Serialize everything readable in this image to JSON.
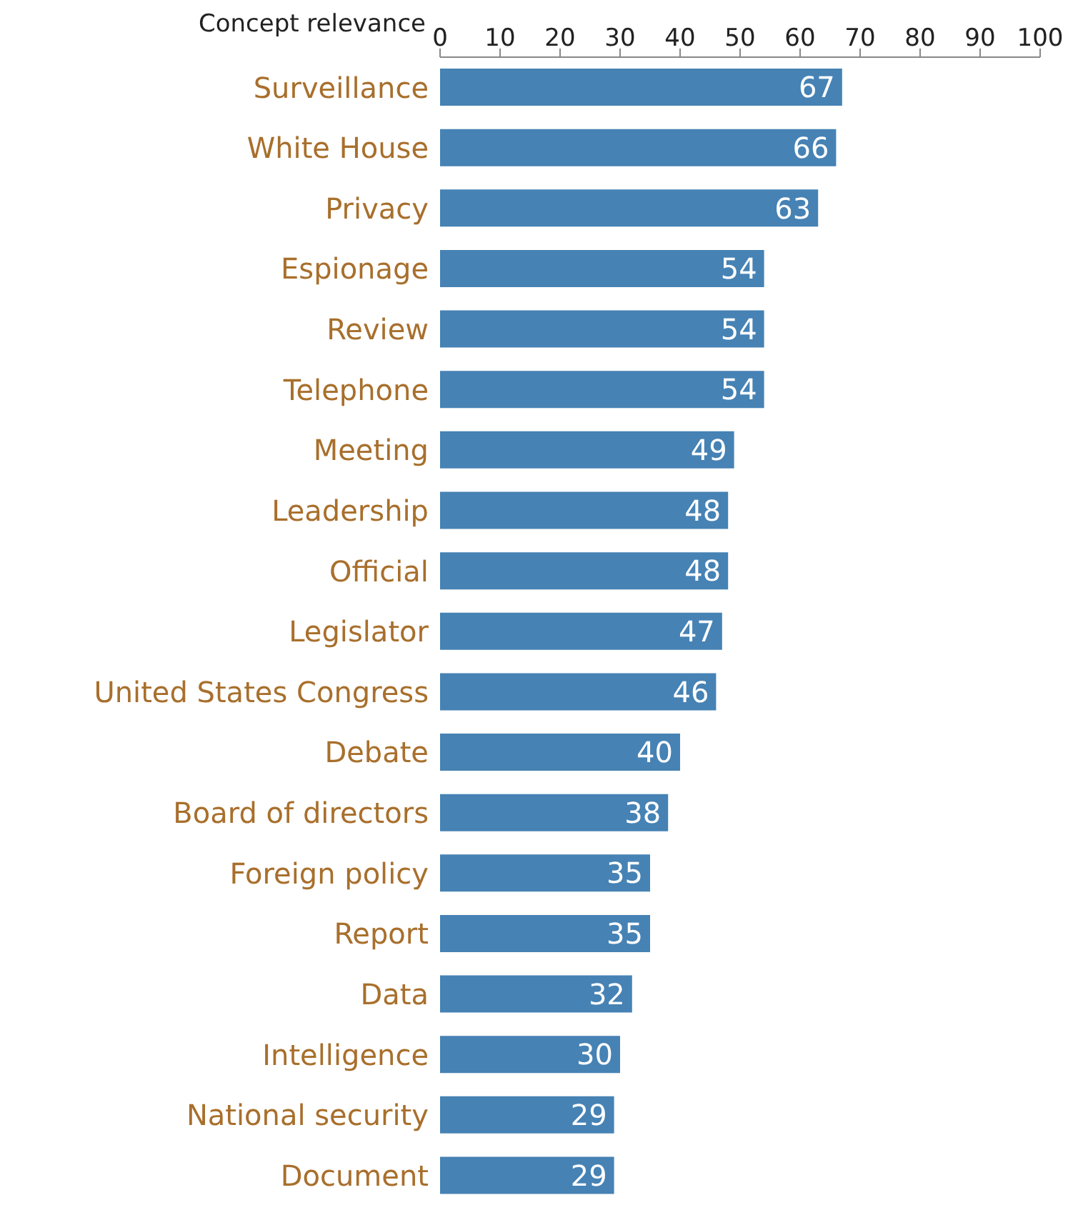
{
  "chart_data": {
    "type": "bar",
    "orientation": "horizontal",
    "xlabel": "Concept relevance",
    "categories": [
      "Surveillance",
      "White House",
      "Privacy",
      "Espionage",
      "Review",
      "Telephone",
      "Meeting",
      "Leadership",
      "Official",
      "Legislator",
      "United States Congress",
      "Debate",
      "Board of directors",
      "Foreign policy",
      "Report",
      "Data",
      "Intelligence",
      "National security",
      "Document"
    ],
    "values": [
      67,
      66,
      63,
      54,
      54,
      54,
      49,
      48,
      48,
      47,
      46,
      40,
      38,
      35,
      35,
      32,
      30,
      29,
      29
    ],
    "color": "#4682b4",
    "xlim": [
      0,
      100
    ],
    "xticks": [
      0,
      10,
      20,
      30,
      40,
      50,
      60,
      70,
      80,
      90,
      100
    ],
    "data_labels": true
  }
}
